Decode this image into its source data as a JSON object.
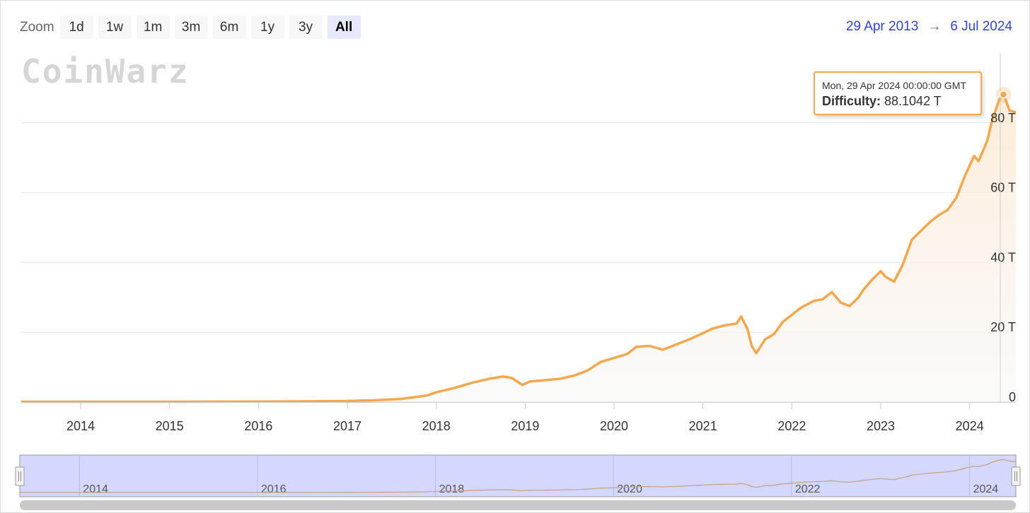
{
  "toolbar": {
    "zoom_label": "Zoom",
    "buttons": [
      "1d",
      "1w",
      "1m",
      "3m",
      "6m",
      "1y",
      "3y",
      "All"
    ],
    "active": "All"
  },
  "range": {
    "from": "29 Apr 2013",
    "arrow": "→",
    "to": "6 Jul 2024"
  },
  "watermark": "CoinWarz",
  "tooltip": {
    "date": "Mon, 29 Apr 2024 00:00:00 GMT",
    "label": "Difficulty:",
    "value": "88.1042 T"
  },
  "colors": {
    "series": "#f3a84f",
    "navigator_fill": "#ccd0ff",
    "link": "#3344cc"
  },
  "chart_data": {
    "type": "area",
    "title": "",
    "xlabel": "",
    "ylabel": "",
    "xlim": [
      2013.33,
      2024.52
    ],
    "ylim": [
      0,
      100
    ],
    "x_ticks": [
      "2014",
      "2015",
      "2016",
      "2017",
      "2018",
      "2019",
      "2020",
      "2021",
      "2022",
      "2023",
      "2024"
    ],
    "y_ticks": [
      "0",
      "20 T",
      "40 T",
      "60 T",
      "80 T"
    ],
    "y_tick_values": [
      0,
      20,
      40,
      60,
      80
    ],
    "navigator_ticks": [
      "2014",
      "2016",
      "2018",
      "2020",
      "2022",
      "2024"
    ],
    "series": [
      {
        "x": [
          2013.33,
          2014.0,
          2015.0,
          2016.0,
          2016.5,
          2017.0,
          2017.3,
          2017.6,
          2017.9,
          2018.0,
          2018.2,
          2018.4,
          2018.6,
          2018.75,
          2018.85,
          2018.97,
          2019.05,
          2019.2,
          2019.4,
          2019.55,
          2019.7,
          2019.85,
          2019.98,
          2020.15,
          2020.25,
          2020.4,
          2020.55,
          2020.7,
          2020.85,
          2020.98,
          2021.1,
          2021.25,
          2021.38,
          2021.43,
          2021.5,
          2021.55,
          2021.6,
          2021.7,
          2021.8,
          2021.9,
          2022.0,
          2022.1,
          2022.25,
          2022.35,
          2022.45,
          2022.55,
          2022.65,
          2022.75,
          2022.8,
          2022.9,
          2023.0,
          2023.05,
          2023.15,
          2023.2,
          2023.25,
          2023.35,
          2023.45,
          2023.55,
          2023.65,
          2023.75,
          2023.85,
          2023.95,
          2024.05,
          2024.1,
          2024.15,
          2024.2,
          2024.25,
          2024.33,
          2024.38,
          2024.45,
          2024.52
        ],
        "y": [
          0.1,
          0.1,
          0.1,
          0.15,
          0.2,
          0.3,
          0.5,
          0.9,
          1.9,
          2.8,
          4.0,
          5.5,
          6.7,
          7.3,
          6.9,
          4.9,
          5.9,
          6.2,
          6.7,
          7.6,
          9.0,
          11.5,
          12.5,
          13.8,
          15.8,
          16.1,
          15.0,
          16.5,
          18.0,
          19.5,
          21.0,
          22.0,
          22.5,
          24.5,
          21.0,
          16.0,
          14.0,
          18.0,
          19.5,
          23.0,
          25.0,
          27.0,
          29.0,
          29.5,
          31.5,
          28.5,
          27.5,
          30.0,
          32.0,
          35.0,
          37.5,
          36.0,
          34.5,
          37.0,
          39.5,
          46.5,
          49.0,
          51.5,
          53.5,
          55.0,
          58.5,
          65.0,
          70.5,
          69.0,
          72.0,
          75.0,
          80.5,
          86.5,
          88.1,
          83.5,
          83.0
        ]
      }
    ]
  }
}
